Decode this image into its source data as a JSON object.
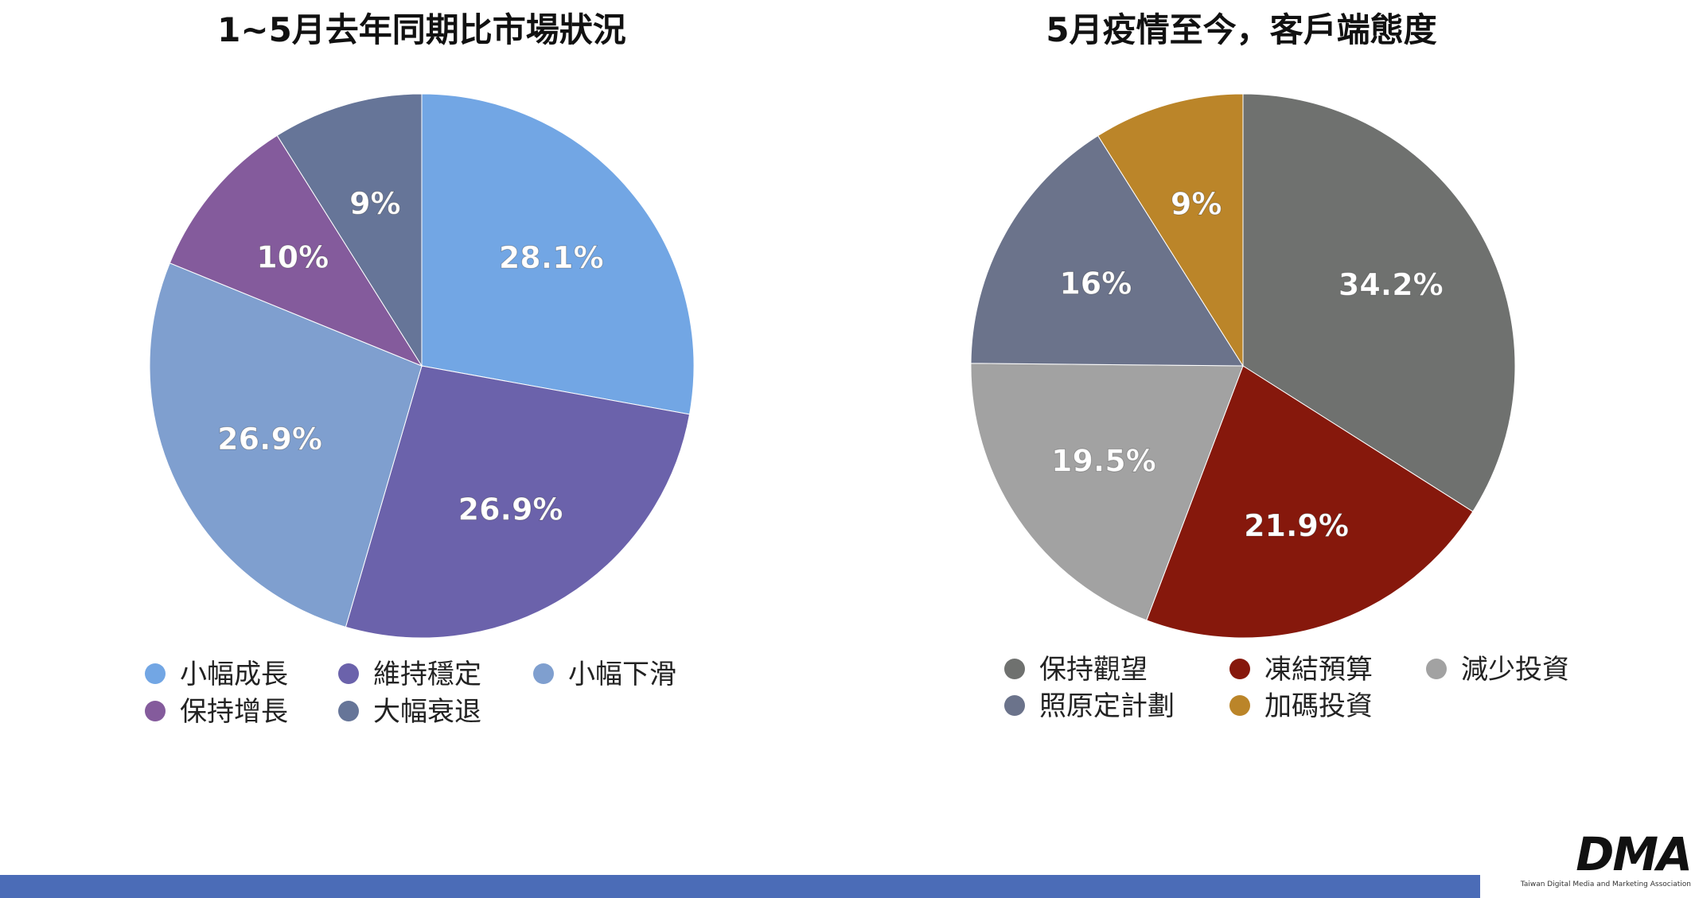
{
  "chart_data": [
    {
      "type": "pie",
      "title": "1~5月去年同期比市場狀況",
      "slices": [
        {
          "label": "小幅成長",
          "value": 28.1,
          "value_label": "28.1%",
          "color": "#72a6e4"
        },
        {
          "label": "維持穩定",
          "value": 26.9,
          "value_label": "26.9%",
          "color": "#6b62ab"
        },
        {
          "label": "小幅下滑",
          "value": 26.9,
          "value_label": "26.9%",
          "color": "#7f9fcf"
        },
        {
          "label": "保持增長",
          "value": 10,
          "value_label": "10%",
          "color": "#845b9c"
        },
        {
          "label": "大幅衰退",
          "value": 9,
          "value_label": "9%",
          "color": "#667598"
        }
      ],
      "legend": [
        [
          "小幅成長",
          "維持穩定",
          "小幅下滑"
        ],
        [
          "保持增長",
          "大幅衰退"
        ]
      ]
    },
    {
      "type": "pie",
      "title": "5月疫情至今，客戶端態度",
      "slices": [
        {
          "label": "保持觀望",
          "value": 34.2,
          "value_label": "34.2%",
          "color": "#6f716f"
        },
        {
          "label": "凍結預算",
          "value": 21.9,
          "value_label": "21.9%",
          "color": "#86180c"
        },
        {
          "label": "減少投資",
          "value": 19.5,
          "value_label": "19.5%",
          "color": "#a2a2a2"
        },
        {
          "label": "照原定計劃",
          "value": 16,
          "value_label": "16%",
          "color": "#6b738b"
        },
        {
          "label": "加碼投資",
          "value": 9,
          "value_label": "9%",
          "color": "#bb8529"
        }
      ],
      "legend": [
        [
          "保持觀望",
          "凍結預算",
          "減少投資"
        ],
        [
          "照原定計劃",
          "加碼投資"
        ]
      ]
    }
  ],
  "logo": {
    "mark": "DMA",
    "subtitle": "Taiwan Digital Media and Marketing Association"
  },
  "colors": {
    "bottom_bar": "#4b6cb7",
    "slice_label": "#ffffff"
  }
}
